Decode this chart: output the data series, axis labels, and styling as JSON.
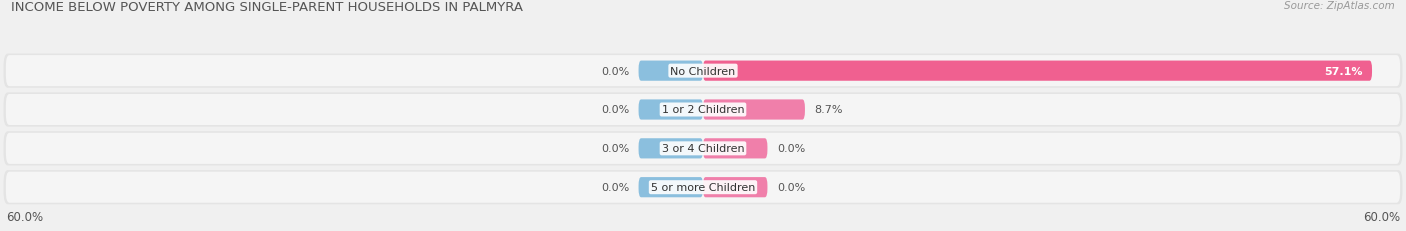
{
  "title": "INCOME BELOW POVERTY AMONG SINGLE-PARENT HOUSEHOLDS IN PALMYRA",
  "source": "Source: ZipAtlas.com",
  "categories": [
    "No Children",
    "1 or 2 Children",
    "3 or 4 Children",
    "5 or more Children"
  ],
  "single_father": [
    0.0,
    0.0,
    0.0,
    0.0
  ],
  "single_mother": [
    57.1,
    8.7,
    0.0,
    0.0
  ],
  "axis_max": 60.0,
  "father_color": "#8bbfde",
  "mother_color": "#f07faa",
  "mother_color_bright": "#f06090",
  "fig_bg_color": "#f0f0f0",
  "row_bg_color": "#e8e8e8",
  "row_bg_color2": "#f8f8f8",
  "title_fontsize": 9.5,
  "source_fontsize": 7.5,
  "bar_label_fontsize": 8,
  "cat_label_fontsize": 8,
  "legend_fontsize": 8.5,
  "axis_label_fontsize": 8.5
}
